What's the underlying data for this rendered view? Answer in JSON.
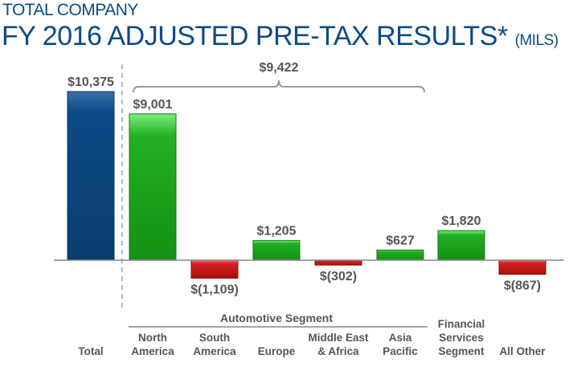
{
  "header": {
    "subtitle": "TOTAL COMPANY",
    "title": "FY 2016 ADJUSTED PRE-TAX RESULTS*",
    "unit": "(MILS)"
  },
  "chart_data": {
    "type": "bar",
    "categories": [
      "Total",
      "North America",
      "South America",
      "Europe",
      "Middle East & Africa",
      "Asia Pacific",
      "Financial Services Segment",
      "All Other"
    ],
    "category_lines": [
      [
        "Total"
      ],
      [
        "North",
        "America"
      ],
      [
        "South",
        "America"
      ],
      [
        "Europe"
      ],
      [
        "Middle East",
        "& Africa"
      ],
      [
        "Asia",
        "Pacific"
      ],
      [
        "Financial",
        "Services",
        "Segment"
      ],
      [
        "All Other"
      ]
    ],
    "values": [
      10375,
      9001,
      -1109,
      1205,
      -302,
      627,
      1820,
      -867
    ],
    "data_labels": [
      "$10,375",
      "$9,001",
      "$(1,109)",
      "$1,205",
      "$(302)",
      "$627",
      "$1,820",
      "$(867)"
    ],
    "group_label": "Automotive Segment",
    "group_categories": [
      "North America",
      "South America",
      "Europe",
      "Middle East & Africa",
      "Asia Pacific"
    ],
    "bracket_label": "$9,422",
    "colors": {
      "total": "#0d4a86",
      "positive": "#22a822",
      "negative": "#d42020",
      "text": "#555555",
      "title": "#0b4b86"
    },
    "grid": false
  }
}
